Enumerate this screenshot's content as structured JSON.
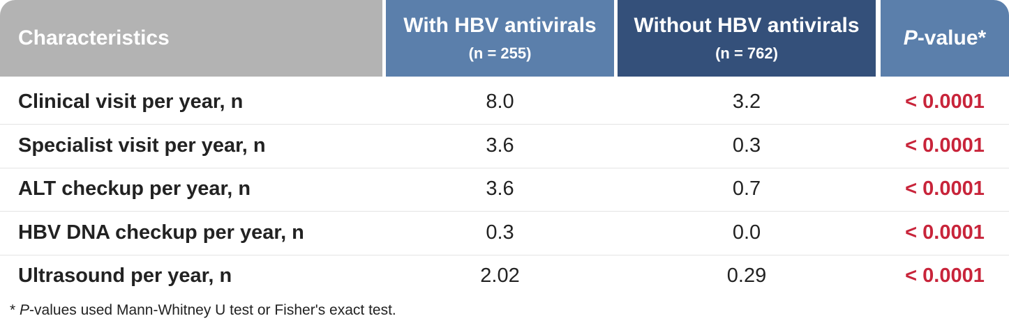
{
  "header": {
    "characteristics": "Characteristics",
    "with": {
      "title": "With HBV antivirals",
      "n": "(n = 255)"
    },
    "without": {
      "title": "Without HBV antivirals",
      "n": "(n = 762)"
    },
    "pvalue": {
      "italic": "P",
      "rest": "-value*"
    }
  },
  "table": {
    "rows": [
      [
        "Clinical visit per year, n",
        "8.0",
        "3.2",
        "< 0.0001"
      ],
      [
        "Specialist visit per year, n",
        "3.6",
        "0.3",
        "< 0.0001"
      ],
      [
        "ALT checkup per year, n",
        "3.6",
        "0.7",
        "< 0.0001"
      ],
      [
        "HBV DNA checkup per year, n",
        "0.3",
        "0.0",
        "< 0.0001"
      ],
      [
        "Ultrasound per year, n",
        "2.02",
        "0.29",
        "< 0.0001"
      ]
    ]
  },
  "footnote": {
    "star": "*",
    "italic": "P",
    "rest": "-values used Mann-Whitney U test or Fisher's exact test."
  }
}
